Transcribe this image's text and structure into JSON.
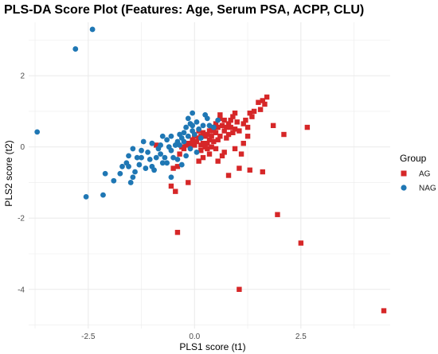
{
  "chart_data": {
    "type": "scatter",
    "title": "PLS-DA Score Plot (Features: Age, Serum PSA, ACPP, CLU)",
    "xlabel": "PLS1 score (t1)",
    "ylabel": "PLS2 score (t2)",
    "xlim": [
      -3.9,
      4.6
    ],
    "ylim": [
      -5.1,
      3.5
    ],
    "x_ticks": [
      -2.5,
      0.0,
      2.5
    ],
    "x_tick_labels": [
      "-2.5",
      "0.0",
      "2.5"
    ],
    "y_ticks": [
      2,
      0,
      -2,
      -4
    ],
    "y_tick_labels": [
      "2",
      "0",
      "-2",
      "-4"
    ],
    "grid": true,
    "legend": {
      "title": "Group",
      "position": "right"
    },
    "series": [
      {
        "name": "AG",
        "color": "#d62728",
        "marker": "square",
        "points": [
          [
            4.45,
            -4.6
          ],
          [
            1.05,
            -4.0
          ],
          [
            2.5,
            -2.7
          ],
          [
            1.95,
            -1.9
          ],
          [
            -0.4,
            -2.4
          ],
          [
            2.65,
            0.55
          ],
          [
            2.1,
            0.35
          ],
          [
            1.85,
            0.6
          ],
          [
            1.7,
            1.4
          ],
          [
            1.6,
            1.3
          ],
          [
            1.65,
            1.2
          ],
          [
            1.5,
            1.25
          ],
          [
            1.55,
            1.05
          ],
          [
            1.4,
            1.0
          ],
          [
            1.3,
            0.95
          ],
          [
            1.35,
            0.85
          ],
          [
            1.2,
            0.75
          ],
          [
            1.15,
            0.65
          ],
          [
            1.25,
            0.55
          ],
          [
            1.0,
            0.7
          ],
          [
            0.95,
            0.5
          ],
          [
            1.05,
            0.45
          ],
          [
            0.9,
            0.4
          ],
          [
            0.85,
            0.55
          ],
          [
            0.8,
            0.35
          ],
          [
            0.75,
            0.25
          ],
          [
            0.7,
            0.45
          ],
          [
            0.6,
            0.3
          ],
          [
            0.55,
            0.2
          ],
          [
            0.5,
            0.4
          ],
          [
            0.45,
            0.15
          ],
          [
            0.4,
            0.3
          ],
          [
            0.35,
            0.2
          ],
          [
            0.3,
            0.1
          ],
          [
            0.25,
            0.3
          ],
          [
            0.2,
            0.1
          ],
          [
            0.15,
            0.05
          ],
          [
            0.1,
            0.25
          ],
          [
            0.05,
            0.15
          ],
          [
            0.0,
            0.05
          ],
          [
            -0.05,
            0.1
          ],
          [
            -0.1,
            0.0
          ],
          [
            -0.15,
            0.1
          ],
          [
            -0.2,
            0.05
          ],
          [
            -0.25,
            -0.05
          ],
          [
            -0.3,
            0.0
          ],
          [
            0.6,
            0.8
          ],
          [
            0.7,
            0.75
          ],
          [
            0.75,
            0.55
          ],
          [
            0.8,
            0.65
          ],
          [
            0.85,
            0.75
          ],
          [
            0.9,
            0.85
          ],
          [
            0.65,
            0.6
          ],
          [
            0.55,
            0.55
          ],
          [
            0.5,
            0.65
          ],
          [
            0.6,
            0.9
          ],
          [
            0.95,
            0.95
          ],
          [
            0.45,
            0.45
          ],
          [
            0.4,
            0.55
          ],
          [
            0.35,
            0.45
          ],
          [
            0.3,
            0.35
          ],
          [
            0.2,
            0.4
          ],
          [
            0.1,
            0.45
          ],
          [
            0.15,
            0.3
          ],
          [
            0.0,
            0.3
          ],
          [
            -0.05,
            0.2
          ],
          [
            1.6,
            -0.7
          ],
          [
            1.3,
            -0.65
          ],
          [
            1.05,
            -0.6
          ],
          [
            1.1,
            -0.2
          ],
          [
            0.8,
            -0.8
          ],
          [
            0.65,
            -0.25
          ],
          [
            0.55,
            -0.4
          ],
          [
            0.35,
            -0.2
          ],
          [
            0.4,
            0.0
          ],
          [
            -0.15,
            -1.0
          ],
          [
            -0.5,
            -0.6
          ],
          [
            -0.55,
            -1.1
          ],
          [
            -0.45,
            -1.25
          ],
          [
            -0.4,
            -0.55
          ],
          [
            -0.9,
            0.05
          ],
          [
            0.2,
            -0.3
          ],
          [
            0.1,
            -0.4
          ],
          [
            0.5,
            -0.05
          ],
          [
            0.25,
            0.0
          ],
          [
            1.25,
            0.3
          ],
          [
            0.7,
            -0.15
          ],
          [
            0.3,
            -0.05
          ],
          [
            -0.35,
            -0.2
          ],
          [
            0.15,
            -0.1
          ],
          [
            0.95,
            -0.05
          ],
          [
            1.15,
            0.1
          ]
        ]
      },
      {
        "name": "NAG",
        "color": "#1f77b4",
        "marker": "circle",
        "points": [
          [
            -2.4,
            3.3
          ],
          [
            -2.8,
            2.75
          ],
          [
            -3.7,
            0.42
          ],
          [
            -2.55,
            -1.4
          ],
          [
            -2.15,
            -1.35
          ],
          [
            -2.1,
            -0.75
          ],
          [
            -1.9,
            -0.95
          ],
          [
            -1.75,
            -0.75
          ],
          [
            -1.7,
            -0.55
          ],
          [
            -1.6,
            -0.45
          ],
          [
            -1.55,
            -0.25
          ],
          [
            -1.45,
            -0.05
          ],
          [
            -1.5,
            -1.0
          ],
          [
            -1.3,
            -0.5
          ],
          [
            -1.25,
            -0.3
          ],
          [
            -1.35,
            -0.3
          ],
          [
            -1.25,
            -0.1
          ],
          [
            -1.2,
            0.15
          ],
          [
            -1.1,
            -0.15
          ],
          [
            -1.05,
            -0.35
          ],
          [
            -1.0,
            -0.55
          ],
          [
            -0.9,
            -0.3
          ],
          [
            -0.85,
            -0.05
          ],
          [
            -0.8,
            -0.2
          ],
          [
            -0.75,
            -0.45
          ],
          [
            -0.7,
            -0.3
          ],
          [
            -0.65,
            0.2
          ],
          [
            -0.6,
            0.0
          ],
          [
            -0.55,
            -0.1
          ],
          [
            -0.5,
            -0.3
          ],
          [
            -0.45,
            0.05
          ],
          [
            -0.4,
            0.15
          ],
          [
            -0.35,
            0.35
          ],
          [
            -0.3,
            0.25
          ],
          [
            -0.25,
            0.4
          ],
          [
            -0.2,
            0.55
          ],
          [
            -0.15,
            0.3
          ],
          [
            -0.1,
            0.65
          ],
          [
            -0.05,
            0.45
          ],
          [
            0.0,
            0.35
          ],
          [
            0.05,
            0.7
          ],
          [
            0.1,
            0.5
          ],
          [
            0.2,
            0.6
          ],
          [
            0.25,
            0.9
          ],
          [
            0.35,
            0.6
          ],
          [
            0.45,
            0.55
          ],
          [
            0.55,
            0.75
          ],
          [
            -0.65,
            -0.45
          ],
          [
            -0.55,
            -0.85
          ],
          [
            -0.4,
            -0.35
          ],
          [
            -0.3,
            -0.5
          ],
          [
            -0.2,
            -0.25
          ],
          [
            -0.1,
            -0.05
          ],
          [
            0.05,
            -0.15
          ],
          [
            -0.8,
            0.05
          ],
          [
            -1.0,
            0.1
          ],
          [
            -0.95,
            -0.65
          ],
          [
            -1.15,
            -0.6
          ],
          [
            -1.4,
            -0.7
          ],
          [
            -1.45,
            -0.85
          ],
          [
            -1.55,
            -0.55
          ],
          [
            -0.75,
            0.3
          ],
          [
            -0.55,
            0.3
          ],
          [
            -0.35,
            0.05
          ],
          [
            -0.25,
            0.15
          ],
          [
            0.15,
            0.25
          ],
          [
            -0.05,
            0.6
          ],
          [
            -0.05,
            0.95
          ],
          [
            0.3,
            0.8
          ],
          [
            -0.15,
            0.8
          ]
        ]
      }
    ]
  }
}
